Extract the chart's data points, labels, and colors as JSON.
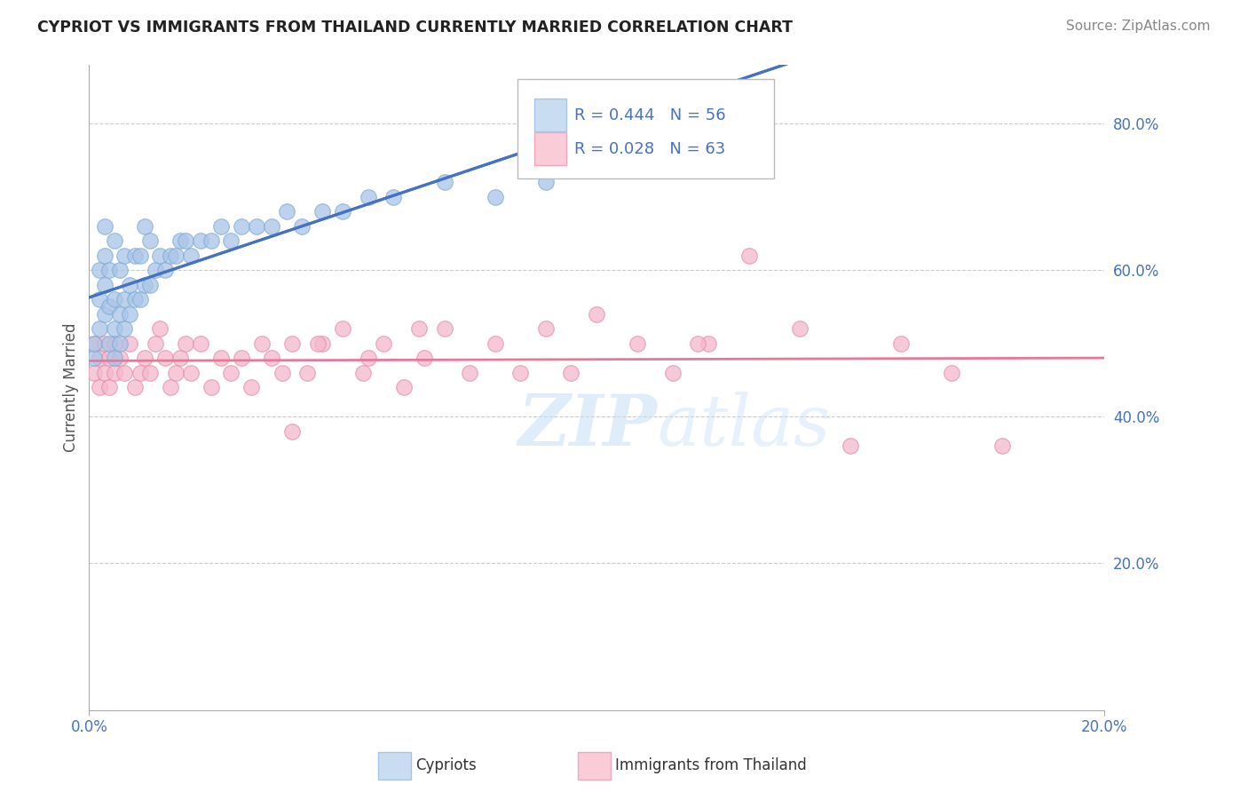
{
  "title": "CYPRIOT VS IMMIGRANTS FROM THAILAND CURRENTLY MARRIED CORRELATION CHART",
  "source": "Source: ZipAtlas.com",
  "ylabel": "Currently Married",
  "background_color": "#ffffff",
  "grid_color": "#cccccc",
  "cypriot_color": "#aac4e8",
  "cypriot_edge_color": "#7aaad4",
  "cypriot_line_color": "#4472c4",
  "thailand_color": "#f4b8cc",
  "thailand_edge_color": "#e888a8",
  "thailand_line_color": "#e87898",
  "watermark_color": "#d0e4f5",
  "xmin": 0.0,
  "xmax": 0.2,
  "ymin": 0.0,
  "ymax": 0.88,
  "yticks": [
    0.2,
    0.4,
    0.6,
    0.8
  ],
  "xticks": [
    0.0,
    0.2
  ],
  "cypriot_x": [
    0.001,
    0.001,
    0.002,
    0.002,
    0.002,
    0.003,
    0.003,
    0.003,
    0.003,
    0.004,
    0.004,
    0.004,
    0.005,
    0.005,
    0.005,
    0.005,
    0.006,
    0.006,
    0.006,
    0.007,
    0.007,
    0.007,
    0.008,
    0.008,
    0.009,
    0.009,
    0.01,
    0.01,
    0.011,
    0.011,
    0.012,
    0.012,
    0.013,
    0.014,
    0.015,
    0.016,
    0.017,
    0.018,
    0.019,
    0.02,
    0.022,
    0.024,
    0.026,
    0.028,
    0.03,
    0.033,
    0.036,
    0.039,
    0.042,
    0.046,
    0.05,
    0.055,
    0.06,
    0.07,
    0.08,
    0.09
  ],
  "cypriot_y": [
    0.48,
    0.5,
    0.52,
    0.56,
    0.6,
    0.54,
    0.58,
    0.62,
    0.66,
    0.5,
    0.55,
    0.6,
    0.48,
    0.52,
    0.56,
    0.64,
    0.5,
    0.54,
    0.6,
    0.52,
    0.56,
    0.62,
    0.54,
    0.58,
    0.56,
    0.62,
    0.56,
    0.62,
    0.58,
    0.66,
    0.58,
    0.64,
    0.6,
    0.62,
    0.6,
    0.62,
    0.62,
    0.64,
    0.64,
    0.62,
    0.64,
    0.64,
    0.66,
    0.64,
    0.66,
    0.66,
    0.66,
    0.68,
    0.66,
    0.68,
    0.68,
    0.7,
    0.7,
    0.72,
    0.7,
    0.72
  ],
  "thailand_x": [
    0.001,
    0.001,
    0.002,
    0.002,
    0.003,
    0.003,
    0.004,
    0.004,
    0.005,
    0.005,
    0.006,
    0.007,
    0.008,
    0.009,
    0.01,
    0.011,
    0.012,
    0.013,
    0.014,
    0.015,
    0.016,
    0.017,
    0.018,
    0.019,
    0.02,
    0.022,
    0.024,
    0.026,
    0.028,
    0.03,
    0.032,
    0.034,
    0.036,
    0.038,
    0.04,
    0.043,
    0.046,
    0.05,
    0.054,
    0.058,
    0.062,
    0.066,
    0.07,
    0.075,
    0.08,
    0.085,
    0.09,
    0.095,
    0.1,
    0.108,
    0.115,
    0.122,
    0.13,
    0.14,
    0.15,
    0.16,
    0.17,
    0.065,
    0.045,
    0.055,
    0.04,
    0.12,
    0.18
  ],
  "thailand_y": [
    0.46,
    0.5,
    0.48,
    0.44,
    0.5,
    0.46,
    0.44,
    0.48,
    0.46,
    0.5,
    0.48,
    0.46,
    0.5,
    0.44,
    0.46,
    0.48,
    0.46,
    0.5,
    0.52,
    0.48,
    0.44,
    0.46,
    0.48,
    0.5,
    0.46,
    0.5,
    0.44,
    0.48,
    0.46,
    0.48,
    0.44,
    0.5,
    0.48,
    0.46,
    0.5,
    0.46,
    0.5,
    0.52,
    0.46,
    0.5,
    0.44,
    0.48,
    0.52,
    0.46,
    0.5,
    0.46,
    0.52,
    0.46,
    0.54,
    0.5,
    0.46,
    0.5,
    0.62,
    0.52,
    0.36,
    0.5,
    0.46,
    0.52,
    0.5,
    0.48,
    0.38,
    0.5,
    0.36
  ]
}
